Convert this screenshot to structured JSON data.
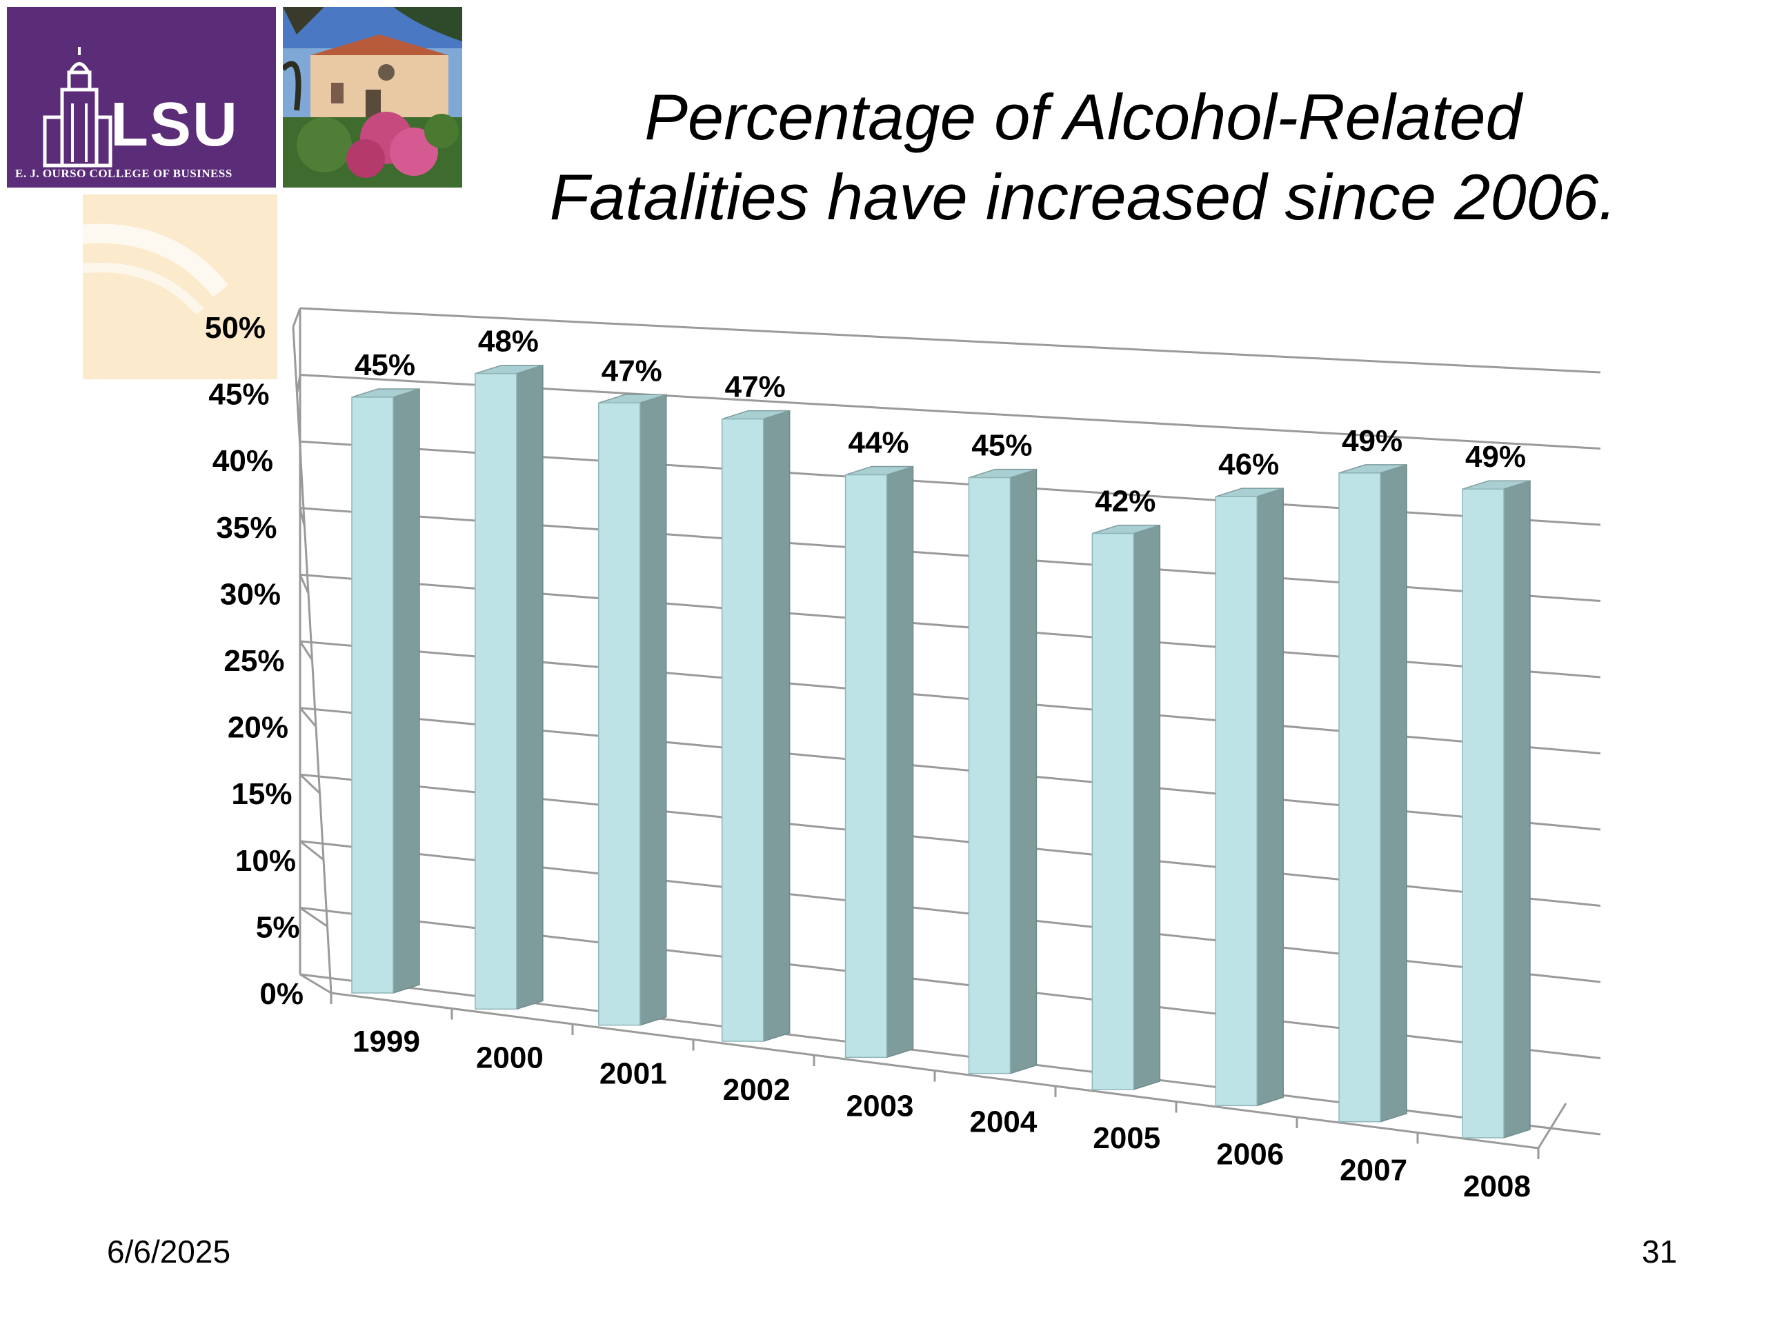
{
  "slide": {
    "title_line1": "Percentage of Alcohol-Related",
    "title_line2": "Fatalities have increased since 2006.",
    "date": "6/6/2025",
    "page_number": "31"
  },
  "logo": {
    "wordmark": "LSU",
    "subtitle": "E. J. OURSO COLLEGE OF BUSINESS",
    "brand_color": "#5b2d79"
  },
  "chart_data": {
    "type": "bar",
    "categories": [
      "1999",
      "2000",
      "2001",
      "2002",
      "2003",
      "2004",
      "2005",
      "2006",
      "2007",
      "2008"
    ],
    "values": [
      45,
      48,
      47,
      47,
      44,
      45,
      42,
      46,
      49,
      49
    ],
    "data_labels": [
      "45%",
      "48%",
      "47%",
      "47%",
      "44%",
      "45%",
      "42%",
      "46%",
      "49%",
      "49%"
    ],
    "y_ticks": [
      "0%",
      "5%",
      "10%",
      "15%",
      "20%",
      "25%",
      "30%",
      "35%",
      "40%",
      "45%",
      "50%"
    ],
    "ylim": [
      0,
      50
    ],
    "grid": true,
    "style": "3d",
    "bar_color": "#bde3e7",
    "bar_side_color": "#7f9c9c"
  }
}
